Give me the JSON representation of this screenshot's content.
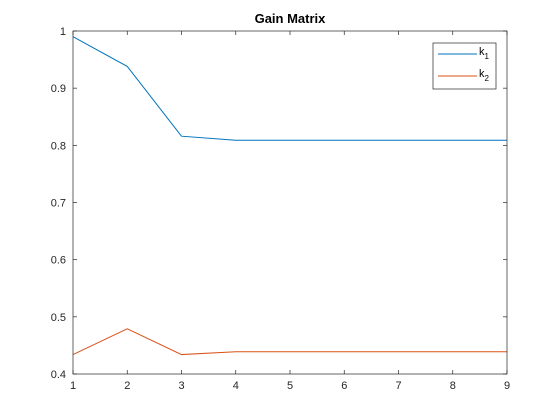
{
  "chart_data": {
    "type": "line",
    "title": "Gain Matrix",
    "xlabel": "",
    "ylabel": "",
    "x": [
      1,
      2,
      3,
      4,
      5,
      6,
      7,
      8,
      9
    ],
    "xlim": [
      1,
      9
    ],
    "ylim": [
      0.4,
      1.0
    ],
    "xticks": [
      1,
      2,
      3,
      4,
      5,
      6,
      7,
      8,
      9
    ],
    "yticks": [
      0.4,
      0.5,
      0.6,
      0.7,
      0.8,
      0.9,
      1
    ],
    "grid": false,
    "legend_position": "top-right",
    "series": [
      {
        "name": "k1",
        "label_base": "k",
        "label_sub": "1",
        "color": "#0072BD",
        "values": [
          0.99,
          0.938,
          0.816,
          0.809,
          0.809,
          0.809,
          0.809,
          0.809,
          0.809
        ]
      },
      {
        "name": "k2",
        "label_base": "k",
        "label_sub": "2",
        "color": "#D95319",
        "values": [
          0.434,
          0.479,
          0.434,
          0.439,
          0.439,
          0.439,
          0.439,
          0.439,
          0.439
        ]
      }
    ]
  }
}
